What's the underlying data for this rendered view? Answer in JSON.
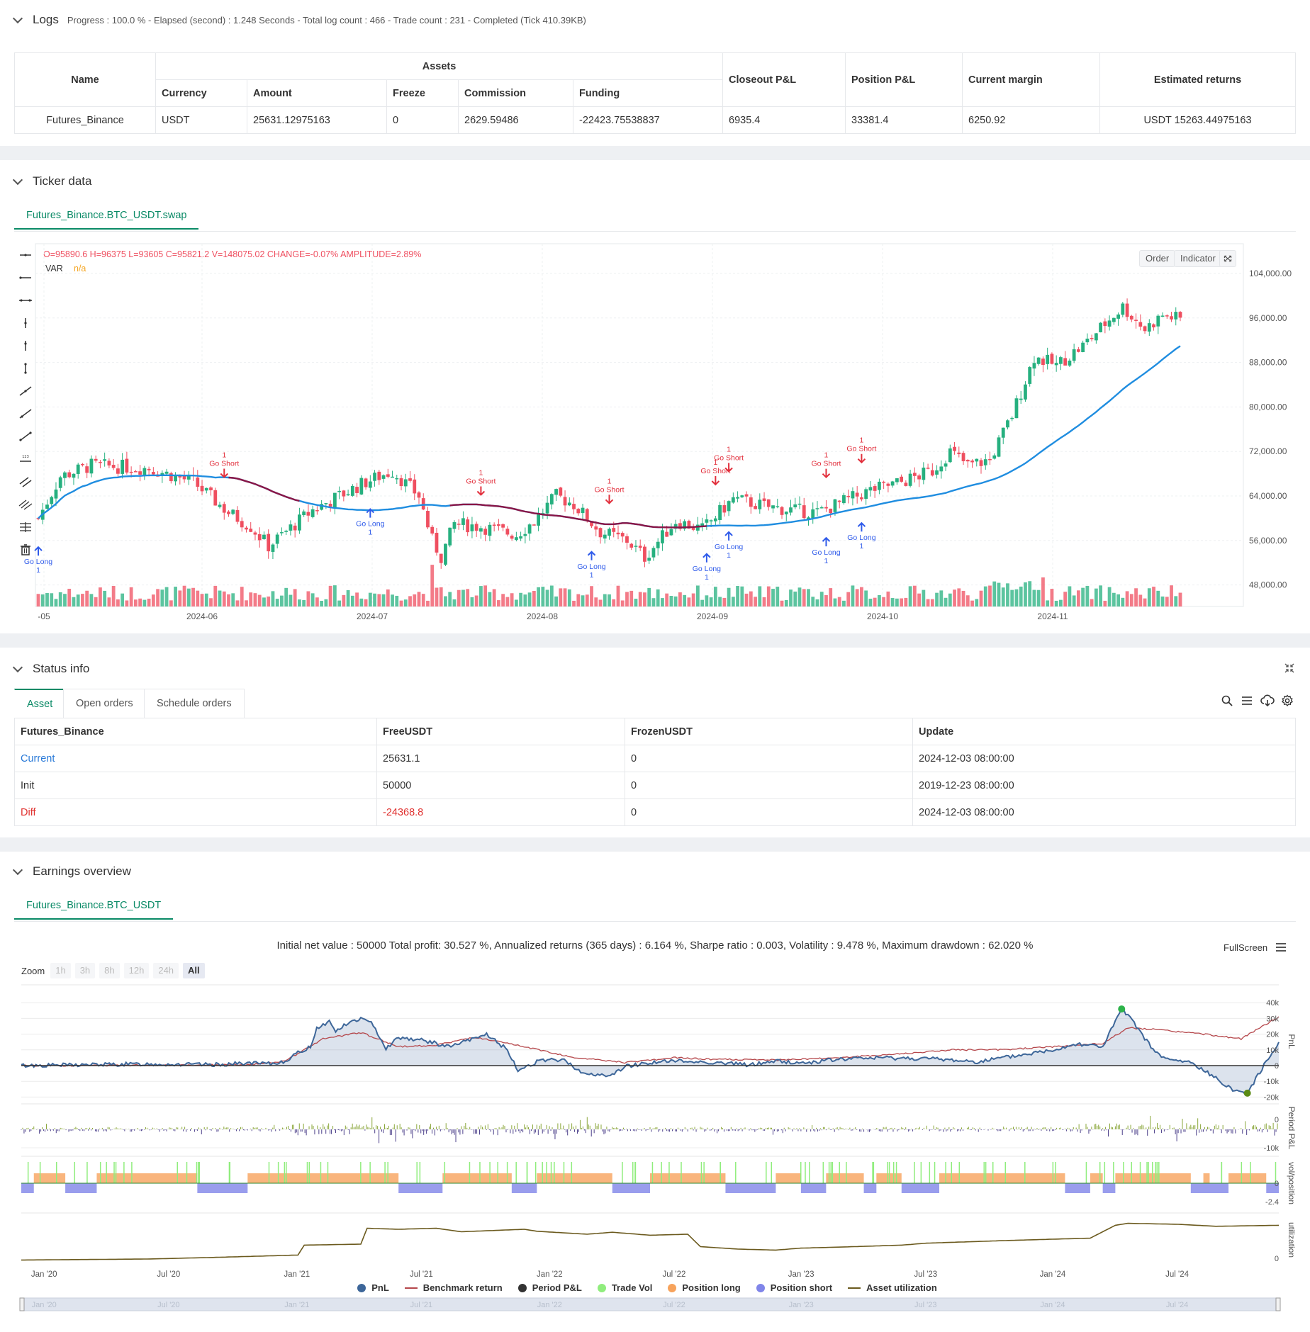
{
  "logs": {
    "title": "Logs",
    "status": "Progress : 100.0 % - Elapsed (second) : 1.248 Seconds - Total log count : 466 - Trade count : 231 - Completed (Tick 410.39KB)"
  },
  "assets_table": {
    "headers": {
      "name": "Name",
      "assets": "Assets",
      "currency": "Currency",
      "amount": "Amount",
      "freeze": "Freeze",
      "commission": "Commission",
      "funding": "Funding",
      "closeout": "Closeout P&L",
      "position": "Position P&L",
      "margin": "Current margin",
      "returns": "Estimated returns"
    },
    "row": {
      "name": "Futures_Binance",
      "currency": "USDT",
      "amount": "25631.12975163",
      "freeze": "0",
      "commission": "2629.59486",
      "funding": "-22423.75538837",
      "closeout": "6935.4",
      "position": "33381.4",
      "margin": "6250.92",
      "returns": "USDT 15263.44975163"
    }
  },
  "ticker": {
    "title": "Ticker data",
    "tab": "Futures_Binance.BTC_USDT.swap",
    "ohlc": "O=95890.6 H=96375 L=93605 C=95821.2 V=148075.02 CHANGE=-0.07% AMPLITUDE=2.89%",
    "var_label": "VAR",
    "var_value": "n/a",
    "order_btn": "Order",
    "indicator_btn": "Indicator",
    "y_ticks": [
      "104,000.00",
      "96,000.00",
      "88,000.00",
      "80,000.00",
      "72,000.00",
      "64,000.00",
      "56,000.00",
      "48,000.00"
    ],
    "x_ticks": [
      "-05",
      "2024-06",
      "2024-07",
      "2024-08",
      "2024-09",
      "2024-10",
      "2024-11"
    ],
    "go_long": "Go Long",
    "go_short": "Go Short",
    "one": "1",
    "colors": {
      "up": "#26b07f",
      "down": "#ef4f60",
      "ma": "#1f8de0",
      "ma2": "#8a1646",
      "long": "#2f5bea",
      "short": "#e22f3c"
    }
  },
  "status": {
    "title": "Status info",
    "tabs": [
      "Asset",
      "Open orders",
      "Schedule orders"
    ],
    "headers": [
      "Futures_Binance",
      "FreeUSDT",
      "FrozenUSDT",
      "Update"
    ],
    "rows": [
      {
        "label": "Current",
        "free": "25631.1",
        "frozen": "0",
        "update": "2024-12-03 08:00:00"
      },
      {
        "label": "Init",
        "free": "50000",
        "frozen": "0",
        "update": "2019-12-23 08:00:00"
      },
      {
        "label": "Diff",
        "free": "-24368.8",
        "frozen": "0",
        "update": "2024-12-03 08:00:00"
      }
    ]
  },
  "earnings": {
    "title": "Earnings overview",
    "tab": "Futures_Binance.BTC_USDT",
    "summary": "Initial net value : 50000 Total profit: 30.527 %, Annualized returns (365 days) : 6.164 %, Sharpe ratio : 0.003, Volatility : 9.478 %, Maximum drawdown : 62.020 %",
    "fullscreen": "FullScreen",
    "zoom_label": "Zoom",
    "zoom_buttons": [
      "1h",
      "3h",
      "8h",
      "12h",
      "24h",
      "All"
    ],
    "pnl_ticks": [
      "40k",
      "30k",
      "20k",
      "10k",
      "0",
      "-10k",
      "-20k"
    ],
    "ppl_ticks": [
      "0",
      "-10k"
    ],
    "pos_ticks": [
      "0",
      "-2.4"
    ],
    "util_ticks": [
      "0"
    ],
    "axis_titles": {
      "pnl": "PnL",
      "ppl": "Period P&L",
      "pos": "vol/position",
      "util": "utilization"
    },
    "x_ticks": [
      "Jan '20",
      "Jul '20",
      "Jan '21",
      "Jul '21",
      "Jan '22",
      "Jul '22",
      "Jan '23",
      "Jul '23",
      "Jan '24",
      "Jul '24"
    ],
    "legend": [
      "PnL",
      "Benchmark return",
      "Period P&L",
      "Trade Vol",
      "Position long",
      "Position short",
      "Asset utilization"
    ],
    "colors": {
      "pnl": "#3d6699",
      "bench": "#b5474b",
      "period": "#333333",
      "tradevol": "#90ed7d",
      "long": "#f7a35c",
      "short": "#8085e9",
      "util": "#6b5a1e"
    }
  }
}
